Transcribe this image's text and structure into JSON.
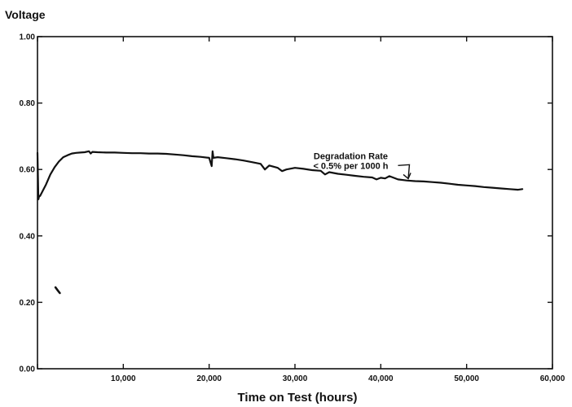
{
  "chart_data": {
    "type": "line",
    "title": "",
    "ylabel": "Voltage",
    "xlabel": "Time on Test (hours)",
    "xlim": [
      0,
      60000
    ],
    "ylim": [
      0.0,
      1.0
    ],
    "x_ticks": [
      0,
      10000,
      20000,
      30000,
      40000,
      50000,
      60000
    ],
    "x_tick_labels": [
      "",
      "10,000",
      "20,000",
      "30,000",
      "40,000",
      "50,000",
      "60,000"
    ],
    "y_ticks": [
      0.0,
      0.2,
      0.4,
      0.6,
      0.8,
      1.0
    ],
    "y_tick_labels": [
      "0.00",
      "0.20",
      "0.40",
      "0.60",
      "0.80",
      "1.00"
    ],
    "grid": false,
    "legend": "none",
    "annotation": {
      "lines": [
        "Degradation Rate",
        "< 0.5% per 1000 h"
      ],
      "text_x": 36500,
      "text_y": 0.585,
      "arrow_to_x": 43200,
      "arrow_to_y": 0.57
    },
    "series": [
      {
        "x": [
          0,
          100,
          200,
          300,
          600,
          1000,
          1500,
          2000,
          2500,
          3000,
          3500,
          4000,
          4500,
          5000,
          5500,
          6000,
          6200,
          6400,
          7000,
          8000,
          9000,
          10000,
          11000,
          12000,
          13000,
          14000,
          15000,
          16000,
          17000,
          18000,
          19000,
          20000,
          20300,
          20400,
          20500,
          21000,
          22000,
          23000,
          24000,
          25000,
          26000,
          26500,
          27000,
          28000,
          28500,
          29000,
          30000,
          31000,
          32000,
          33000,
          33500,
          34000,
          35000,
          36000,
          37000,
          38000,
          39000,
          39500,
          40000,
          40500,
          41000,
          42000,
          43000,
          44000,
          45000,
          46000,
          47000,
          48000,
          49000,
          50000,
          51000,
          52000,
          53000,
          54000,
          55000,
          56000,
          56500
        ],
        "y": [
          0.65,
          0.51,
          0.52,
          0.52,
          0.535,
          0.555,
          0.585,
          0.607,
          0.624,
          0.637,
          0.643,
          0.648,
          0.65,
          0.651,
          0.652,
          0.655,
          0.648,
          0.653,
          0.652,
          0.651,
          0.651,
          0.65,
          0.649,
          0.649,
          0.648,
          0.648,
          0.647,
          0.645,
          0.643,
          0.64,
          0.638,
          0.635,
          0.61,
          0.655,
          0.635,
          0.637,
          0.634,
          0.631,
          0.627,
          0.622,
          0.617,
          0.6,
          0.612,
          0.605,
          0.595,
          0.6,
          0.605,
          0.602,
          0.598,
          0.596,
          0.585,
          0.592,
          0.587,
          0.584,
          0.581,
          0.578,
          0.576,
          0.57,
          0.575,
          0.573,
          0.58,
          0.57,
          0.567,
          0.565,
          0.564,
          0.562,
          0.56,
          0.557,
          0.554,
          0.552,
          0.55,
          0.547,
          0.545,
          0.543,
          0.541,
          0.539,
          0.541
        ]
      },
      {
        "x": [
          2100,
          2350,
          2600
        ],
        "y": [
          0.245,
          0.236,
          0.228
        ]
      }
    ]
  }
}
